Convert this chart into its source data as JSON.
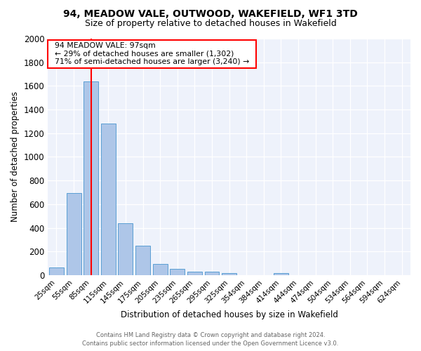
{
  "title": "94, MEADOW VALE, OUTWOOD, WAKEFIELD, WF1 3TD",
  "subtitle": "Size of property relative to detached houses in Wakefield",
  "xlabel": "Distribution of detached houses by size in Wakefield",
  "ylabel": "Number of detached properties",
  "footer_line1": "Contains HM Land Registry data © Crown copyright and database right 2024.",
  "footer_line2": "Contains public sector information licensed under the Open Government Licence v3.0.",
  "bar_labels": [
    "25sqm",
    "55sqm",
    "85sqm",
    "115sqm",
    "145sqm",
    "175sqm",
    "205sqm",
    "235sqm",
    "265sqm",
    "295sqm",
    "325sqm",
    "354sqm",
    "384sqm",
    "414sqm",
    "444sqm",
    "474sqm",
    "504sqm",
    "534sqm",
    "564sqm",
    "594sqm",
    "624sqm"
  ],
  "bar_values": [
    65,
    695,
    1635,
    1280,
    440,
    250,
    95,
    55,
    30,
    28,
    18,
    0,
    0,
    20,
    0,
    0,
    0,
    0,
    0,
    0,
    0
  ],
  "bar_color": "#aec6e8",
  "bar_edge_color": "#5a9fd4",
  "ylim": [
    0,
    2000
  ],
  "yticks": [
    0,
    200,
    400,
    600,
    800,
    1000,
    1200,
    1400,
    1600,
    1800,
    2000
  ],
  "red_line_x": 2.0,
  "annotation_text_line1": "94 MEADOW VALE: 97sqm",
  "annotation_text_line2": "← 29% of detached houses are smaller (1,302)",
  "annotation_text_line3": "71% of semi-detached houses are larger (3,240) →",
  "background_color": "#eef2fb"
}
